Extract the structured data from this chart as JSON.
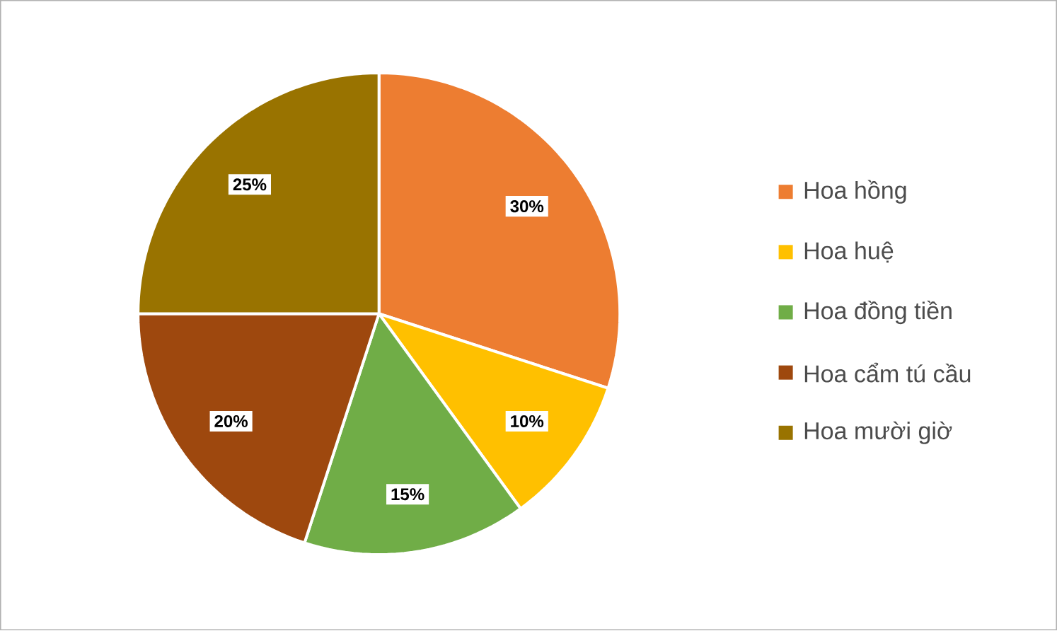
{
  "chart_data": {
    "type": "pie",
    "categories": [
      "Hoa hồng",
      "Hoa huệ",
      "Hoa đồng tiền",
      "Hoa cẩm tú cầu",
      "Hoa mười giờ"
    ],
    "values": [
      30,
      10,
      15,
      20,
      25
    ],
    "colors": [
      "#ed7d31",
      "#ffc000",
      "#70ad47",
      "#9e480e",
      "#997300"
    ],
    "value_labels": [
      "30%",
      "10%",
      "15%",
      "20%",
      "25%"
    ],
    "legend": "right"
  }
}
